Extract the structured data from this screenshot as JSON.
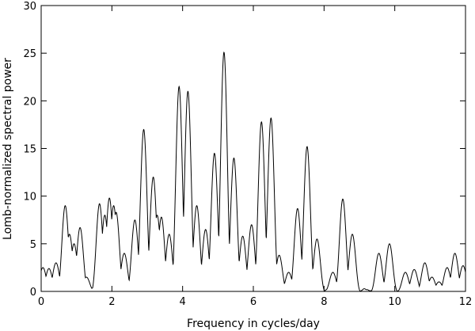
{
  "chart_data": {
    "type": "line",
    "xlabel": "Frequency in cycles/day",
    "ylabel": "Lomb-normalized spectral power",
    "xlim": [
      0,
      12
    ],
    "ylim": [
      0,
      30
    ],
    "x_ticks": [
      0,
      2,
      4,
      6,
      8,
      10,
      12
    ],
    "y_ticks": [
      0,
      5,
      10,
      15,
      20,
      25,
      30
    ],
    "grid": false,
    "line_color": "#000000",
    "series": [
      {
        "peaks": [
          [
            0.05,
            2.5
          ],
          [
            0.22,
            2.4
          ],
          [
            0.42,
            3.0
          ],
          [
            0.68,
            9.0
          ],
          [
            0.8,
            6.0
          ],
          [
            0.93,
            5.0
          ],
          [
            1.1,
            6.7
          ],
          [
            1.28,
            1.5
          ],
          [
            1.65,
            9.2
          ],
          [
            1.8,
            8.0
          ],
          [
            1.93,
            9.8
          ],
          [
            2.05,
            9.0
          ],
          [
            2.12,
            8.3
          ],
          [
            2.35,
            4.0
          ],
          [
            2.65,
            7.5
          ],
          [
            2.9,
            17.0
          ],
          [
            3.17,
            12.0
          ],
          [
            3.28,
            8.0
          ],
          [
            3.4,
            7.8
          ],
          [
            3.62,
            6.0
          ],
          [
            3.9,
            21.5
          ],
          [
            4.15,
            21.0
          ],
          [
            4.4,
            9.0
          ],
          [
            4.65,
            6.5
          ],
          [
            4.9,
            14.5
          ],
          [
            5.17,
            25.1
          ],
          [
            5.45,
            14.0
          ],
          [
            5.7,
            5.8
          ],
          [
            5.95,
            7.0
          ],
          [
            6.23,
            17.8
          ],
          [
            6.5,
            18.2
          ],
          [
            6.73,
            3.8
          ],
          [
            7.0,
            2.0
          ],
          [
            7.25,
            8.7
          ],
          [
            7.52,
            15.2
          ],
          [
            7.8,
            5.5
          ],
          [
            8.25,
            2.0
          ],
          [
            8.53,
            9.7
          ],
          [
            8.8,
            6.0
          ],
          [
            9.55,
            4.0
          ],
          [
            9.85,
            5.0
          ],
          [
            10.3,
            2.0
          ],
          [
            10.55,
            2.3
          ],
          [
            10.85,
            3.0
          ],
          [
            11.05,
            1.5
          ],
          [
            11.25,
            1.0
          ],
          [
            11.48,
            2.5
          ],
          [
            11.7,
            4.0
          ],
          [
            11.93,
            2.7
          ]
        ]
      }
    ]
  }
}
